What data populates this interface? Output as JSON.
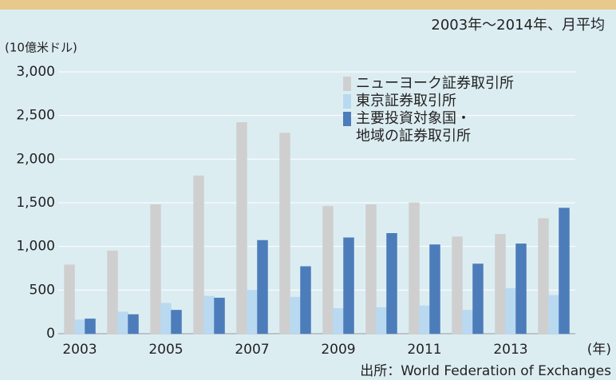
{
  "chart_data": {
    "type": "bar",
    "subtitle": "2003年～2014年、月平均",
    "y_label": "(10億米ドル)",
    "x_label": "(年)",
    "source": "出所：World Federation of Exchanges",
    "categories": [
      "2003",
      null,
      "2005",
      null,
      "2007",
      null,
      "2009",
      null,
      "2011",
      null,
      "2013",
      null
    ],
    "series": [
      {
        "name": "ニューヨーク証券取引所",
        "color": "#cfcfcf",
        "values": [
          790,
          950,
          1480,
          1810,
          2420,
          2300,
          1460,
          1480,
          1500,
          1110,
          1140,
          1320
        ]
      },
      {
        "name": "東京証券取引所",
        "color": "#b9d9f1",
        "values": [
          160,
          250,
          350,
          430,
          500,
          420,
          290,
          300,
          320,
          270,
          520,
          440
        ]
      },
      {
        "name": "主要投資対象国・\n地域の証券取引所",
        "color": "#4d7cba",
        "values": [
          170,
          220,
          270,
          410,
          1070,
          770,
          1100,
          1150,
          1020,
          800,
          1030,
          1440
        ]
      }
    ],
    "ylim": [
      0,
      3000
    ],
    "yticks": [
      0,
      500,
      {
        "value": 1000,
        "label": "1,000"
      },
      {
        "value": 1500,
        "label": "1,500"
      },
      {
        "value": 2000,
        "label": "2,000"
      },
      {
        "value": 2500,
        "label": "2,500"
      },
      {
        "value": 3000,
        "label": "3,000"
      }
    ],
    "grid": true
  }
}
